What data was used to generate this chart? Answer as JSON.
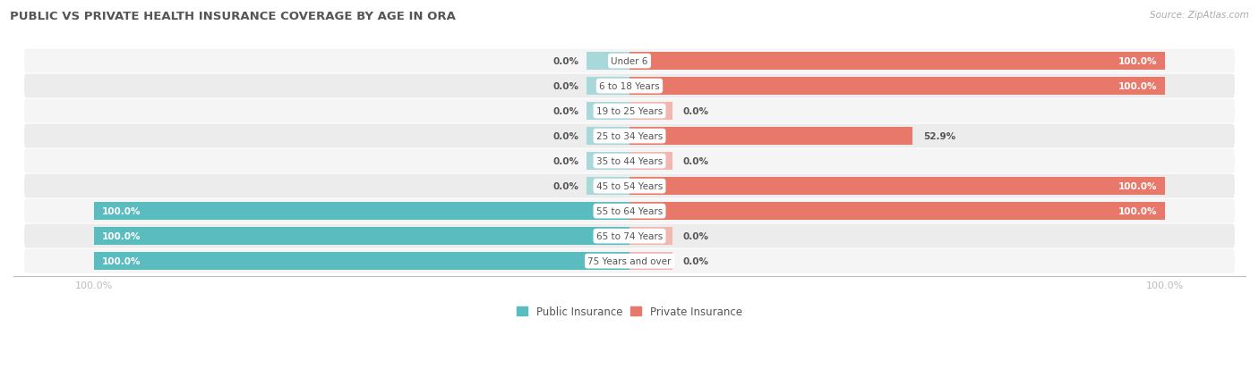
{
  "title": "PUBLIC VS PRIVATE HEALTH INSURANCE COVERAGE BY AGE IN ORA",
  "source": "Source: ZipAtlas.com",
  "categories": [
    "Under 6",
    "6 to 18 Years",
    "19 to 25 Years",
    "25 to 34 Years",
    "35 to 44 Years",
    "45 to 54 Years",
    "55 to 64 Years",
    "65 to 74 Years",
    "75 Years and over"
  ],
  "public": [
    0.0,
    0.0,
    0.0,
    0.0,
    0.0,
    0.0,
    100.0,
    100.0,
    100.0
  ],
  "private": [
    100.0,
    100.0,
    0.0,
    52.9,
    0.0,
    100.0,
    100.0,
    0.0,
    0.0
  ],
  "public_color": "#5bbcbf",
  "private_color": "#e8796a",
  "public_color_light": "#a8d8da",
  "private_color_light": "#f2b8b0",
  "row_bg_light": "#f5f5f5",
  "row_bg_dark": "#ececec",
  "label_white": "#ffffff",
  "label_dark": "#555555",
  "title_color": "#555555",
  "source_color": "#aaaaaa",
  "axis_color": "#bbbbbb",
  "stub_size": 8.0,
  "max_val": 100.0,
  "figsize": [
    14.06,
    4.14
  ],
  "dpi": 100
}
